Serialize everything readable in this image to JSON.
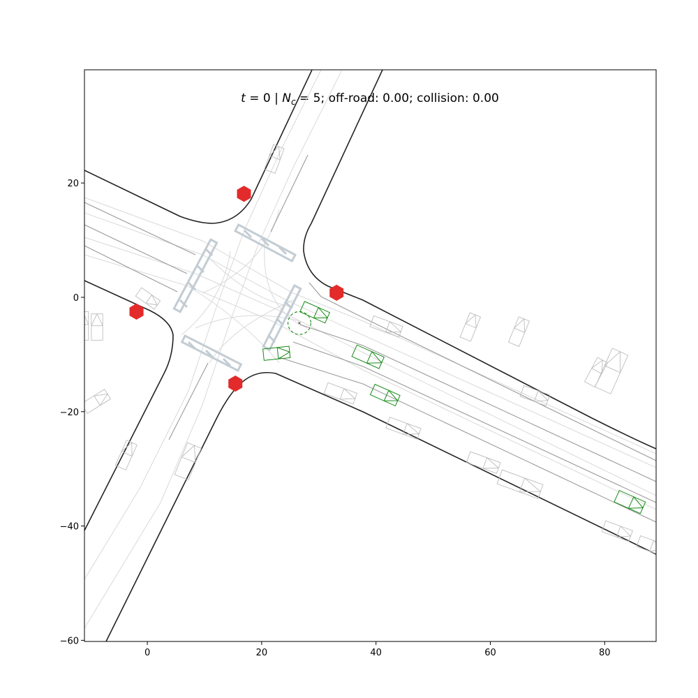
{
  "figure": {
    "title_t": "t",
    "title_t_value": " = 0  | ",
    "title_n": "N",
    "title_n_sub": "c",
    "title_rest": " = 5; off-road: 0.00; collision: 0.00"
  },
  "axes": {
    "xlim": [
      -11,
      89
    ],
    "ylim": [
      -60.2,
      39.8
    ],
    "x_ticks": [
      0,
      20,
      40,
      60,
      80
    ],
    "y_ticks": [
      20,
      0,
      -20,
      -40,
      -60
    ]
  },
  "x_tick_labels": [
    "0",
    "20",
    "40",
    "60",
    "80"
  ],
  "y_tick_labels": [
    "20",
    "0",
    "−20",
    "−40",
    "−60"
  ],
  "colors": {
    "stop_sign": "#e32b2b",
    "controlled_vehicle": "#168a16",
    "other_vehicle": "#bdbdbd",
    "road_edge": "#222222",
    "crosswalk": "#c3ccd3"
  },
  "stop_signs": [
    {
      "x": 16.9,
      "y": 18.1
    },
    {
      "x": 33.1,
      "y": 0.8
    },
    {
      "x": -1.9,
      "y": -2.5
    },
    {
      "x": 15.4,
      "y": -15.1
    }
  ],
  "goal": {
    "x": 26.6,
    "y": -4.5,
    "r": 2.0
  },
  "controlled_vehicles": [
    {
      "x": 29.3,
      "y": -2.6,
      "len": 4.8,
      "wid": 2.0,
      "heading": -24
    },
    {
      "x": 22.6,
      "y": -9.8,
      "len": 4.6,
      "wid": 2.0,
      "heading": 6
    },
    {
      "x": 38.6,
      "y": -10.4,
      "len": 5.2,
      "wid": 2.2,
      "heading": -24
    },
    {
      "x": 41.6,
      "y": -17.1,
      "len": 4.8,
      "wid": 2.0,
      "heading": -24
    },
    {
      "x": 84.4,
      "y": -35.8,
      "len": 5.0,
      "wid": 2.2,
      "heading": -24
    }
  ],
  "other_vehicles": [
    {
      "x": 22.2,
      "y": 24.2,
      "len": 4.6,
      "wid": 2.0,
      "heading": 70
    },
    {
      "x": 0.1,
      "y": -0.2,
      "len": 4.0,
      "wid": 1.8,
      "heading": -35
    },
    {
      "x": -8.8,
      "y": -5.2,
      "len": 4.6,
      "wid": 2.0,
      "heading": 90
    },
    {
      "x": -11.3,
      "y": -5.0,
      "len": 5.0,
      "wid": 2.0,
      "heading": 90
    },
    {
      "x": -9.0,
      "y": -18.2,
      "len": 4.8,
      "wid": 2.0,
      "heading": 32
    },
    {
      "x": 41.8,
      "y": -5.1,
      "len": 5.4,
      "wid": 2.0,
      "heading": -20
    },
    {
      "x": 56.5,
      "y": -5.2,
      "len": 4.6,
      "wid": 2.0,
      "heading": 68
    },
    {
      "x": 65.0,
      "y": -6.0,
      "len": 4.8,
      "wid": 2.0,
      "heading": 68
    },
    {
      "x": 78.5,
      "y": -13.1,
      "len": 4.8,
      "wid": 2.0,
      "heading": 62
    },
    {
      "x": 81.2,
      "y": -12.9,
      "len": 7.4,
      "wid": 3.0,
      "heading": 66
    },
    {
      "x": 67.8,
      "y": -17.2,
      "len": 4.8,
      "wid": 2.0,
      "heading": -20
    },
    {
      "x": 33.8,
      "y": -16.8,
      "len": 5.4,
      "wid": 2.0,
      "heading": -20
    },
    {
      "x": 44.8,
      "y": -22.9,
      "len": 5.8,
      "wid": 2.0,
      "heading": -20
    },
    {
      "x": 58.8,
      "y": -28.9,
      "len": 5.6,
      "wid": 2.0,
      "heading": -20
    },
    {
      "x": 65.2,
      "y": -32.7,
      "len": 7.6,
      "wid": 2.6,
      "heading": -20
    },
    {
      "x": 82.2,
      "y": -40.9,
      "len": 5.0,
      "wid": 2.0,
      "heading": -20
    },
    {
      "x": 88.0,
      "y": -43.4,
      "len": 4.4,
      "wid": 2.0,
      "heading": -20
    },
    {
      "x": -3.7,
      "y": -27.6,
      "len": 4.8,
      "wid": 2.0,
      "heading": 66
    },
    {
      "x": 7.1,
      "y": -28.7,
      "len": 6.0,
      "wid": 2.6,
      "heading": 68
    }
  ]
}
